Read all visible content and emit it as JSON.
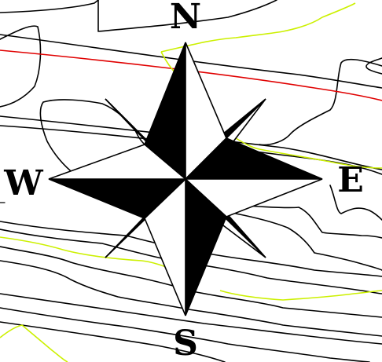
{
  "colors": {
    "background": "#ffffff",
    "contour": "#000000",
    "boundary_red": "#e00000",
    "road_yellow": "#ccf000",
    "rose_dark": "#000000",
    "rose_light": "#ffffff"
  },
  "compass_rose": {
    "north_label": "N",
    "south_label": "S",
    "east_label": "E",
    "west_label": "W"
  }
}
